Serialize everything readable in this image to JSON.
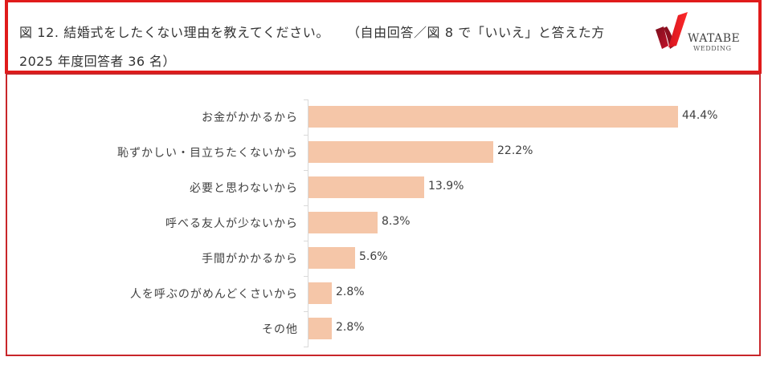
{
  "header": {
    "title_line1_a": "図 12. 結婚式をしたくない理由を教えてください。",
    "title_line1_b": "（自由回答／図 8 で「いいえ」と答えた方",
    "title_line2": "2025 年度回答者 36 名）",
    "logo": {
      "icon": "ribbon-check-logo-icon",
      "name": "WATABE",
      "sub": "WEDDING"
    }
  },
  "colors": {
    "header_border": "#e01b1b",
    "chart_border": "#c8262a",
    "bar": "#f5c6a8",
    "text": "#404040",
    "axis": "#d9d9d9"
  },
  "chart_data": {
    "type": "bar",
    "orientation": "horizontal",
    "title": "図 12. 結婚式をしたくない理由を教えてください。（自由回答／図 8 で「いいえ」と答えた方 2025 年度回答者 36 名）",
    "xlabel": "",
    "ylabel": "",
    "categories": [
      "お金がかかるから",
      "恥ずかしい・目立ちたくないから",
      "必要と思わないから",
      "呼べる友人が少ないから",
      "手間がかかるから",
      "人を呼ぶのがめんどくさいから",
      "その他"
    ],
    "values": [
      44.4,
      22.2,
      13.9,
      8.3,
      5.6,
      2.8,
      2.8
    ],
    "value_labels": [
      "44.4%",
      "22.2%",
      "13.9%",
      "8.3%",
      "5.6%",
      "2.8%",
      "2.8%"
    ],
    "unit": "%",
    "grid": false,
    "legend": null,
    "xlim": [
      0,
      50
    ]
  }
}
